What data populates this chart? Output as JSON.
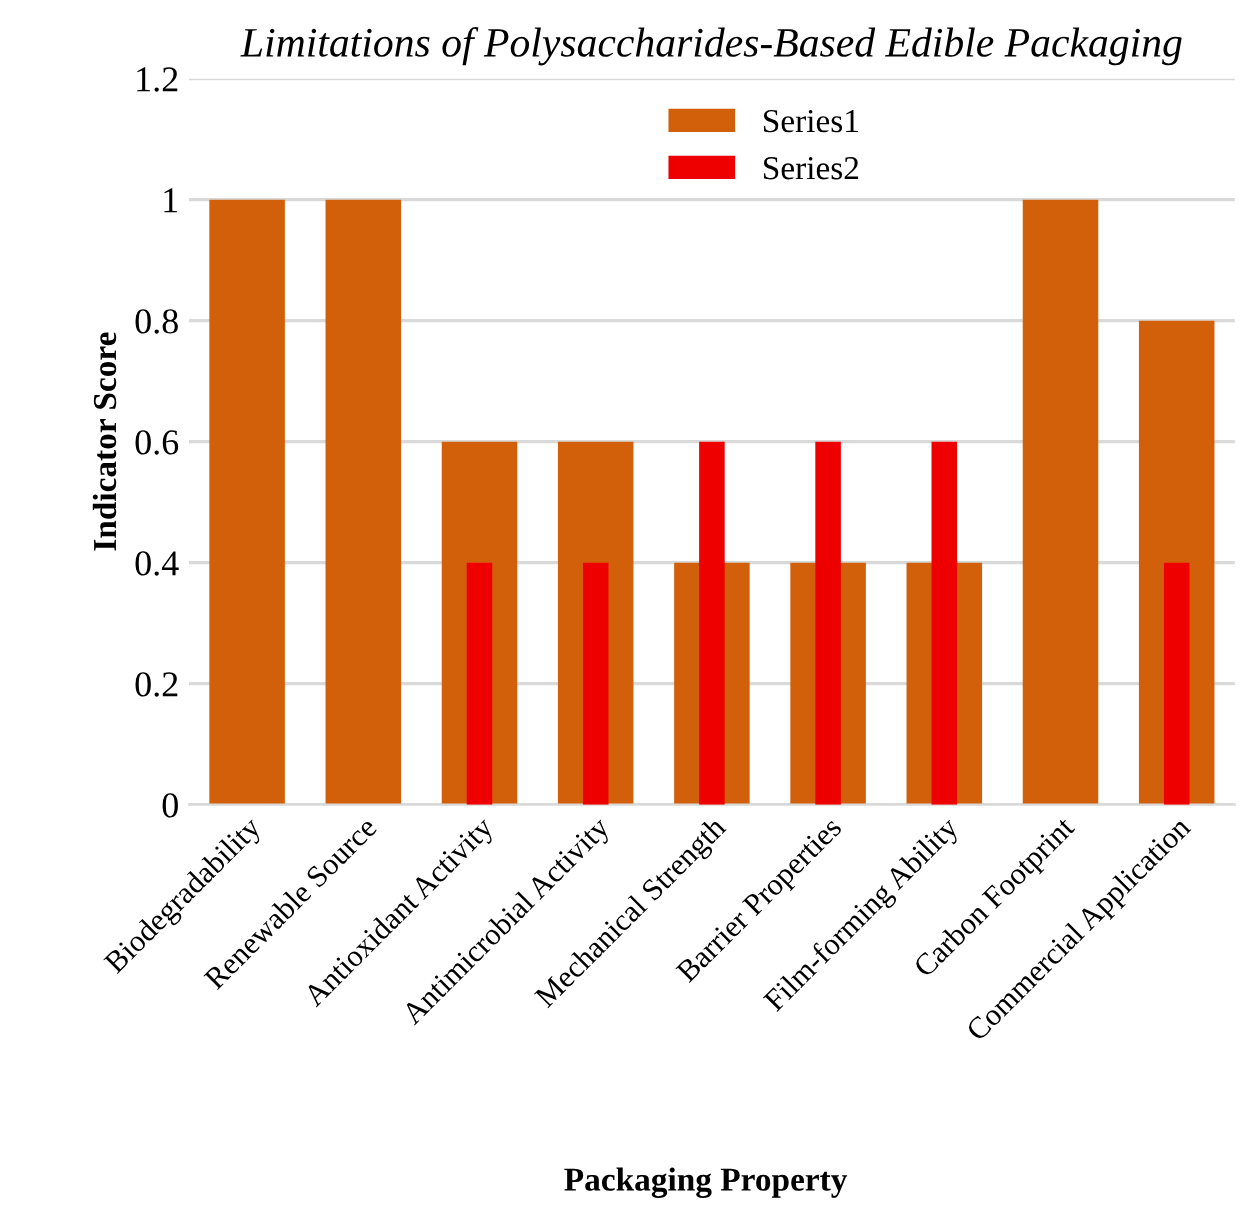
{
  "chart_data": {
    "type": "bar",
    "title": "Limitations of Polysaccharides-Based Edible Packaging",
    "xlabel": "Packaging Property",
    "ylabel": "Indicator Score",
    "categories": [
      "Biodegradability",
      "Renewable Source",
      "Antioxidant Activity",
      "Antimicrobial Activity",
      "Mechanical Strength",
      "Barrier Properties",
      "Film-forming Ability",
      "Carbon Footprint",
      "Commercial Application"
    ],
    "series": [
      {
        "name": "Series1",
        "color": "#d2600a",
        "values": [
          1,
          1,
          0.6,
          0.6,
          0.4,
          0.4,
          0.4,
          1,
          0.8
        ]
      },
      {
        "name": "Series2",
        "color": "#ee0000",
        "values": [
          null,
          null,
          0.4,
          0.4,
          0.6,
          0.6,
          0.6,
          null,
          0.4
        ]
      }
    ],
    "ylim": [
      0,
      1.2
    ],
    "yticks": [
      0,
      {
        "value": 0.2,
        "label": "0.2"
      },
      {
        "value": 0.4,
        "label": "0.4"
      },
      {
        "value": 0.6,
        "label": "0.6"
      },
      {
        "value": 0.8,
        "label": "0.8"
      },
      1,
      {
        "value": 1.2,
        "label": "1.2"
      }
    ],
    "grid": "y",
    "legend": "top"
  }
}
